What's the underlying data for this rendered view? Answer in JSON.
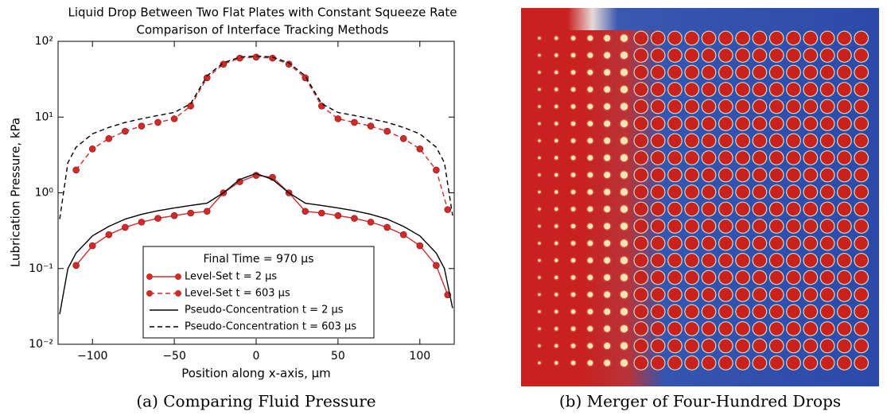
{
  "chart_data": {
    "type": "line",
    "title": "Liquid Drop Between Two Flat Plates with Constant Squeeze Rate",
    "subtitle": "Comparison of Interface Tracking Methods",
    "xlabel": "Position along x-axis, µm",
    "ylabel": "Lubrication Pressure, kPa",
    "xlim": [
      -121,
      121
    ],
    "xticks": [
      {
        "value": -100,
        "label": "−100"
      },
      {
        "value": -50,
        "label": "−50"
      },
      0,
      50,
      100
    ],
    "ylim": [
      0.01,
      100
    ],
    "yticks": [
      {
        "value": 0.01,
        "label": "10⁻²"
      },
      {
        "value": 0.1,
        "label": "10⁻¹"
      },
      {
        "value": 1,
        "label": "10⁰"
      },
      {
        "value": 10,
        "label": "10¹"
      },
      {
        "value": 100,
        "label": "10²"
      }
    ],
    "log_y": true,
    "legend_title": "Final Time = 970 µs",
    "legend": "lower center",
    "series": [
      {
        "name": "Level-Set t = 2 µs",
        "color": "#d02b2b",
        "linestyle": "solid",
        "marker": "o",
        "x": [
          -110,
          -100,
          -90,
          -80,
          -70,
          -60,
          -50,
          -40,
          -30,
          -20,
          -10,
          0,
          10,
          20,
          30,
          40,
          50,
          60,
          70,
          80,
          90,
          100,
          110,
          117
        ],
        "values": [
          0.11,
          0.2,
          0.28,
          0.35,
          0.41,
          0.46,
          0.5,
          0.54,
          0.57,
          1.0,
          1.4,
          1.7,
          1.6,
          1.0,
          0.57,
          0.54,
          0.5,
          0.46,
          0.41,
          0.35,
          0.28,
          0.2,
          0.11,
          0.045
        ]
      },
      {
        "name": "Level-Set t = 603 µs",
        "color": "#d02b2b",
        "linestyle": "dashed",
        "marker": "o",
        "x": [
          -110,
          -100,
          -90,
          -80,
          -70,
          -60,
          -50,
          -40,
          -30,
          -20,
          -10,
          0,
          10,
          20,
          30,
          40,
          50,
          60,
          70,
          80,
          90,
          100,
          110,
          117
        ],
        "values": [
          2,
          3.8,
          5.2,
          6.5,
          7.6,
          8.5,
          9.5,
          14,
          33,
          50,
          60,
          62,
          60,
          50,
          33,
          14,
          9.5,
          8.5,
          7.6,
          6.5,
          5.2,
          3.8,
          2,
          0.6
        ]
      },
      {
        "name": "Pseudo-Concentration t = 2 µs",
        "color": "#000000",
        "linestyle": "solid",
        "marker": "none",
        "x": [
          -120,
          -115,
          -110,
          -100,
          -90,
          -80,
          -70,
          -60,
          -50,
          -40,
          -30,
          -20,
          -10,
          0,
          10,
          20,
          30,
          40,
          50,
          60,
          70,
          80,
          90,
          100,
          110,
          115,
          120
        ],
        "values": [
          0.025,
          0.1,
          0.16,
          0.27,
          0.36,
          0.45,
          0.52,
          0.58,
          0.63,
          0.68,
          0.73,
          1.0,
          1.5,
          1.8,
          1.5,
          1.0,
          0.73,
          0.68,
          0.63,
          0.58,
          0.52,
          0.45,
          0.36,
          0.27,
          0.16,
          0.1,
          0.03
        ]
      },
      {
        "name": "Pseudo-Concentration t = 603 µs",
        "color": "#000000",
        "linestyle": "dashed",
        "marker": "none",
        "x": [
          -120,
          -115,
          -110,
          -100,
          -90,
          -80,
          -70,
          -60,
          -50,
          -40,
          -30,
          -20,
          -10,
          0,
          10,
          20,
          30,
          40,
          50,
          60,
          70,
          80,
          90,
          100,
          110,
          115,
          120
        ],
        "values": [
          0.45,
          2.5,
          4,
          6,
          7.3,
          8.5,
          9.5,
          10.5,
          11.5,
          15,
          35,
          52,
          62,
          64,
          62,
          52,
          35,
          15,
          11.5,
          10.5,
          9.5,
          8.5,
          7.3,
          6,
          4,
          2.5,
          0.5
        ]
      }
    ]
  },
  "captions": [
    "(a) Comparing Fluid Pressure",
    "(b) Merger of Four-Hundred Drops"
  ]
}
